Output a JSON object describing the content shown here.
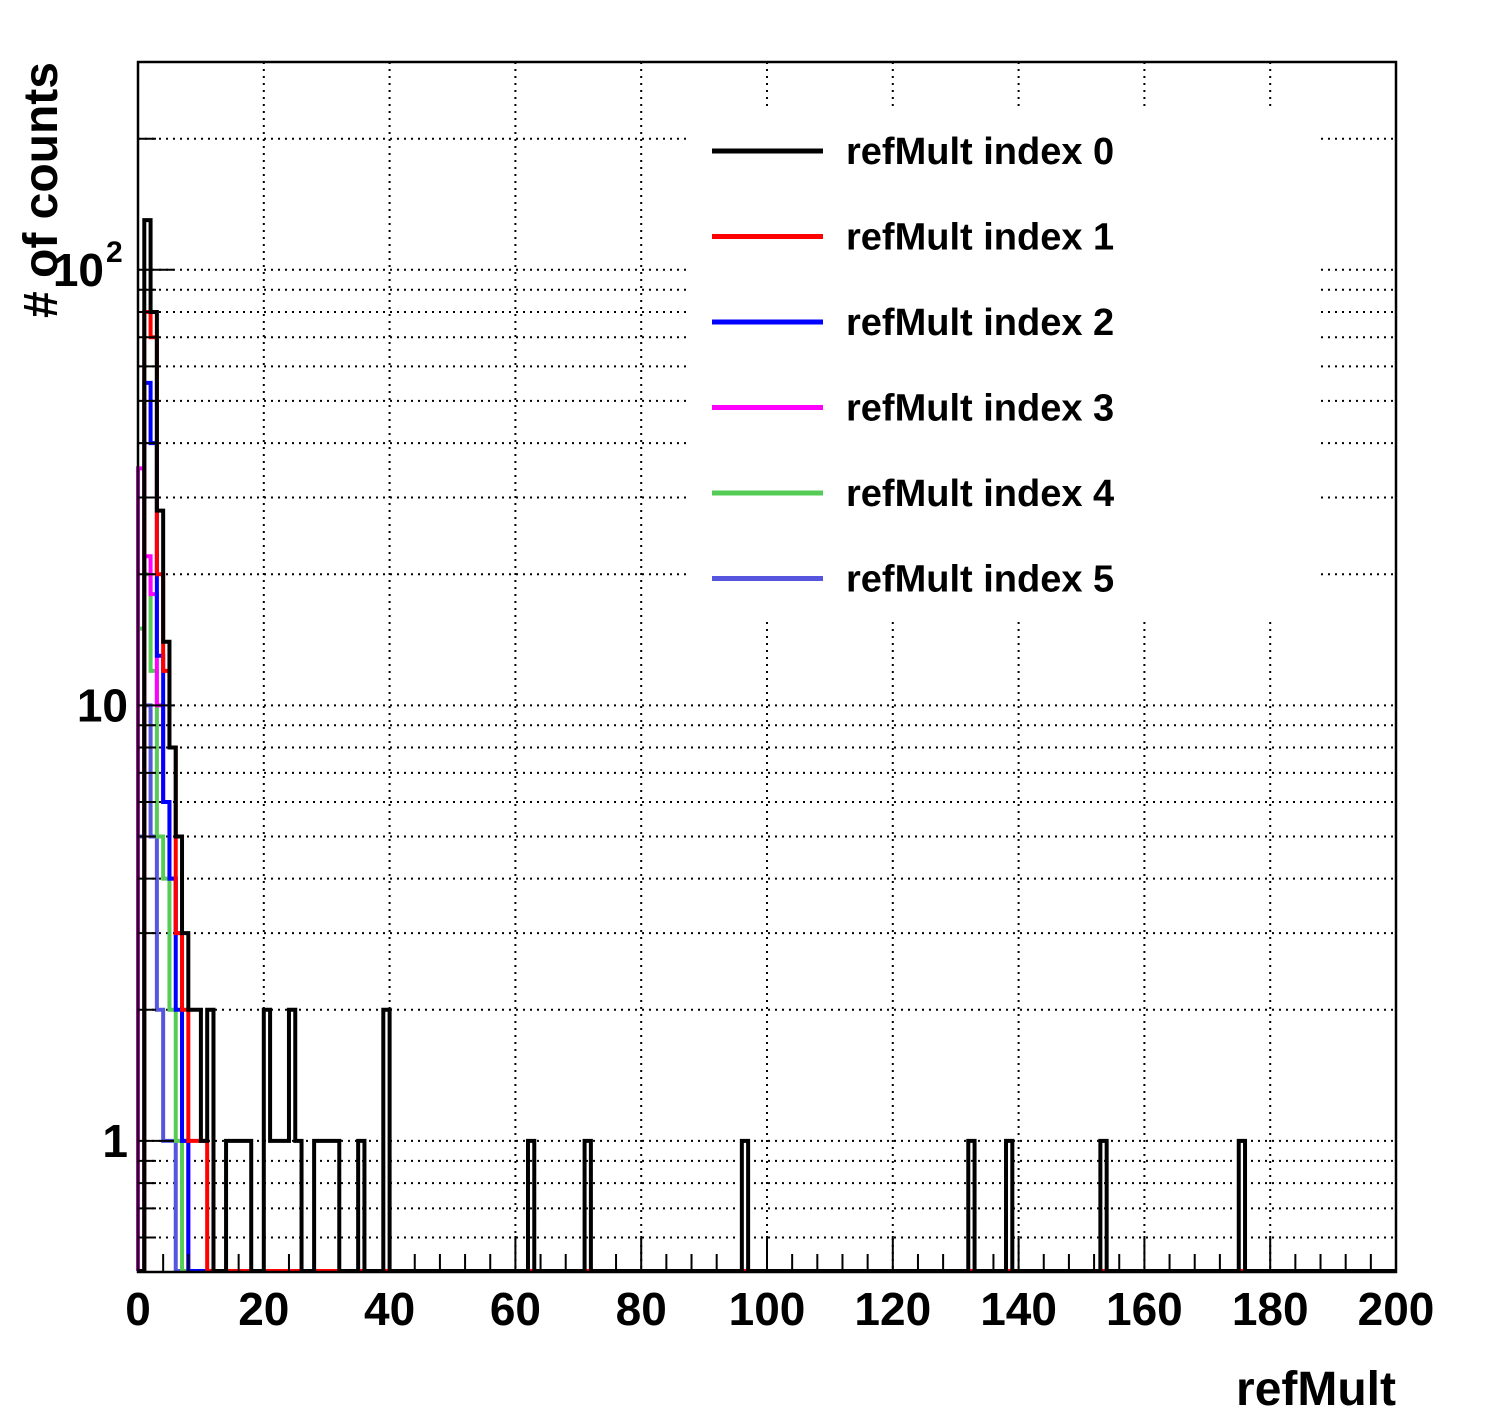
{
  "chart_data": {
    "type": "bar",
    "title": "",
    "xlabel": "refMult",
    "ylabel": "# of counts",
    "xlim": [
      0,
      200
    ],
    "ylim": [
      0.5,
      300
    ],
    "yscale": "log",
    "bin_width": 1,
    "grid": true,
    "legend_position": "top-right",
    "x_ticks": [
      {
        "value": 0,
        "label": "0"
      },
      {
        "value": 20,
        "label": "20"
      },
      {
        "value": 40,
        "label": "40"
      },
      {
        "value": 60,
        "label": "60"
      },
      {
        "value": 80,
        "label": "80"
      },
      {
        "value": 100,
        "label": "100"
      },
      {
        "value": 120,
        "label": "120"
      },
      {
        "value": 140,
        "label": "140"
      },
      {
        "value": 160,
        "label": "160"
      },
      {
        "value": 180,
        "label": "180"
      },
      {
        "value": 200,
        "label": "200"
      }
    ],
    "y_ticks": [
      {
        "value": 1,
        "label": "1",
        "exponent": ""
      },
      {
        "value": 10,
        "label": "10",
        "exponent": ""
      },
      {
        "value": 100,
        "label": "10",
        "exponent": "2"
      }
    ],
    "series": [
      {
        "name": "refMult index 0",
        "color": "#000000",
        "bins": [
          [
            1,
            130
          ],
          [
            2,
            80
          ],
          [
            3,
            28
          ],
          [
            4,
            14
          ],
          [
            5,
            8
          ],
          [
            6,
            5
          ],
          [
            7,
            3
          ],
          [
            8,
            2
          ],
          [
            9,
            2
          ],
          [
            10,
            1
          ],
          [
            11,
            2
          ],
          [
            14,
            1
          ],
          [
            15,
            1
          ],
          [
            16,
            1
          ],
          [
            17,
            1
          ],
          [
            20,
            2
          ],
          [
            21,
            1
          ],
          [
            22,
            1
          ],
          [
            23,
            1
          ],
          [
            24,
            2
          ],
          [
            25,
            1
          ],
          [
            28,
            1
          ],
          [
            29,
            1
          ],
          [
            30,
            1
          ],
          [
            31,
            1
          ],
          [
            35,
            1
          ],
          [
            39,
            2
          ],
          [
            62,
            1
          ],
          [
            71,
            1
          ],
          [
            96,
            1
          ],
          [
            132,
            1
          ],
          [
            138,
            1
          ],
          [
            153,
            1
          ],
          [
            175,
            1
          ]
        ]
      },
      {
        "name": "refMult index 1",
        "color": "#ff0000",
        "bins": [
          [
            1,
            80
          ],
          [
            2,
            70
          ],
          [
            3,
            20
          ],
          [
            4,
            12
          ],
          [
            5,
            8
          ],
          [
            6,
            3
          ],
          [
            7,
            2
          ],
          [
            8,
            1
          ],
          [
            9,
            1
          ],
          [
            10,
            1
          ]
        ]
      },
      {
        "name": "refMult index 2",
        "color": "#0000ff",
        "bins": [
          [
            1,
            55
          ],
          [
            2,
            40
          ],
          [
            3,
            13
          ],
          [
            4,
            6
          ],
          [
            5,
            4
          ],
          [
            6,
            2
          ],
          [
            7,
            1
          ]
        ]
      },
      {
        "name": "refMult index 3",
        "color": "#ff00ff",
        "bins": [
          [
            0,
            35
          ],
          [
            1,
            22
          ],
          [
            2,
            18
          ],
          [
            3,
            10
          ],
          [
            4,
            6
          ],
          [
            5,
            4
          ],
          [
            6,
            3
          ],
          [
            7,
            1
          ]
        ]
      },
      {
        "name": "refMult index 4",
        "color": "#55cc55",
        "bins": [
          [
            0,
            15
          ],
          [
            1,
            20
          ],
          [
            2,
            12
          ],
          [
            3,
            5
          ],
          [
            4,
            4
          ],
          [
            5,
            2
          ],
          [
            6,
            1
          ]
        ]
      },
      {
        "name": "refMult index 5",
        "color": "#5555dd",
        "bins": [
          [
            0,
            5
          ],
          [
            1,
            10
          ],
          [
            2,
            5
          ],
          [
            3,
            2
          ],
          [
            4,
            1
          ],
          [
            5,
            1
          ]
        ]
      }
    ]
  }
}
